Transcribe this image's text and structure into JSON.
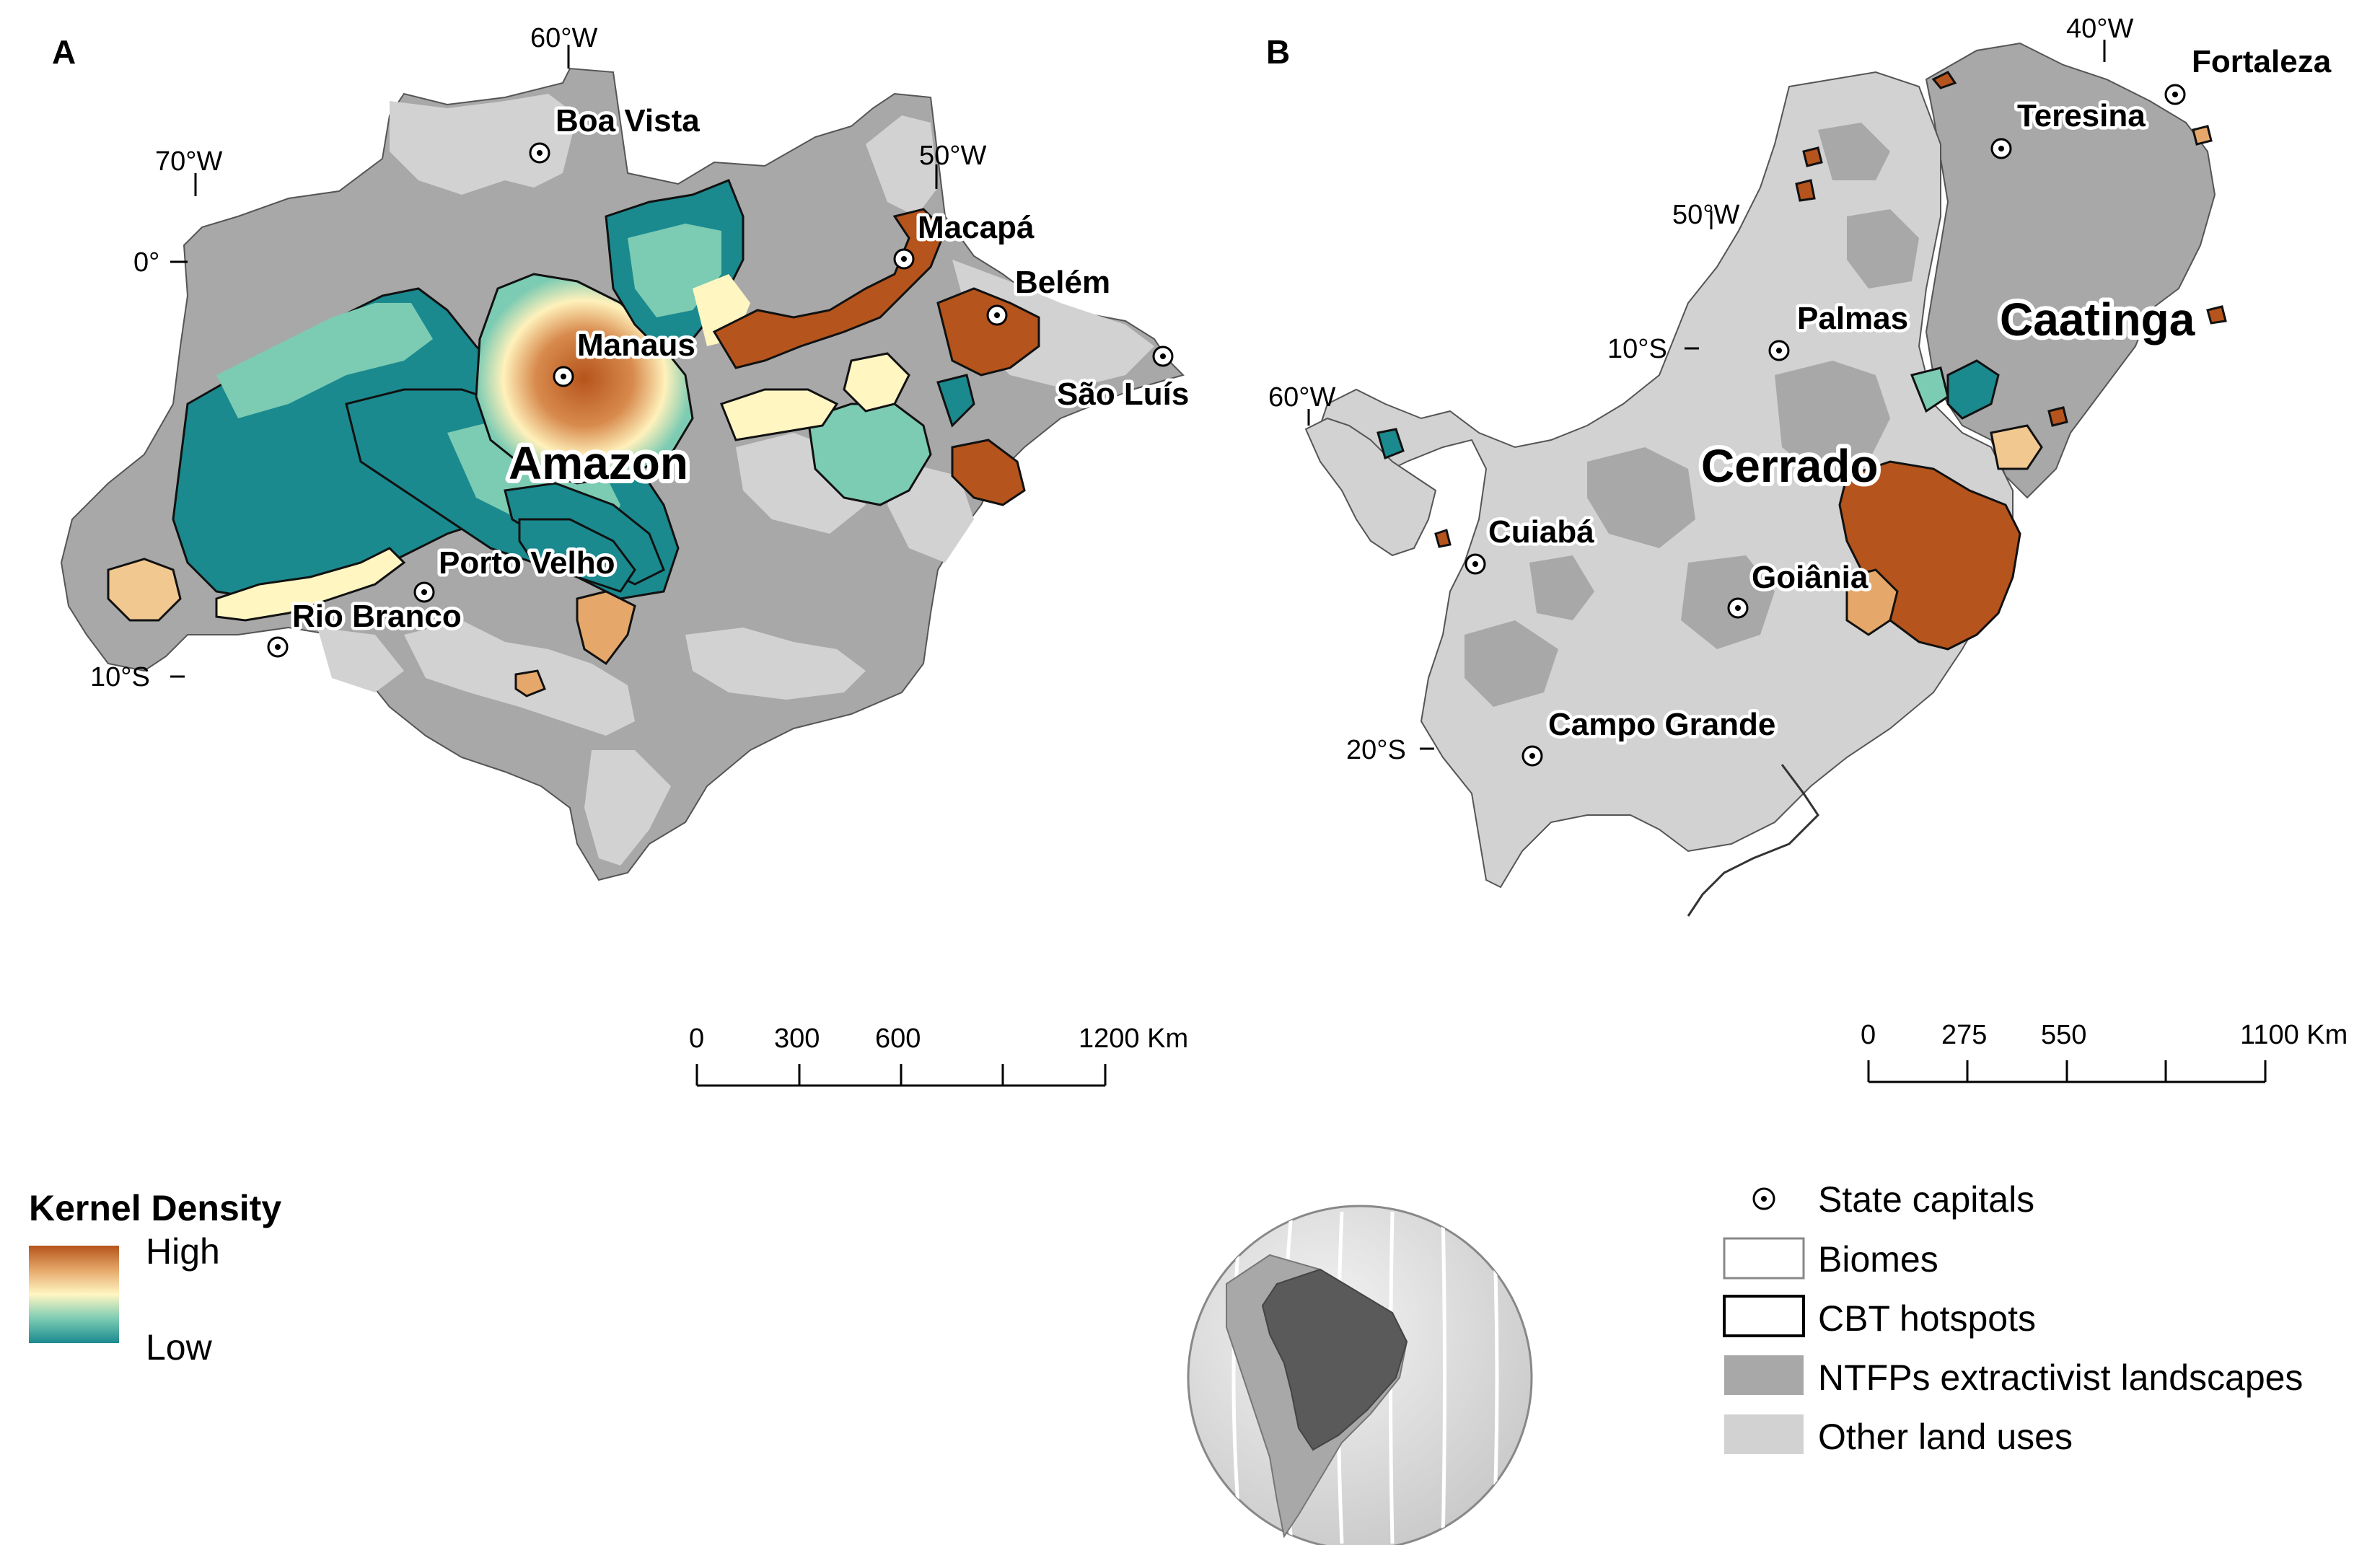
{
  "panels": {
    "a": {
      "letter": "A",
      "coords": {
        "lon_60w": "60°W",
        "lon_70w": "70°W",
        "lon_50w": "50°W",
        "lat_0": "0°",
        "lat_10s": "10°S"
      },
      "cities": {
        "boa_vista": "Boa Vista",
        "macapa": "Macapá",
        "belem": "Belém",
        "manaus": "Manaus",
        "sao_luis": "São Luís",
        "porto_velho": "Porto Velho",
        "rio_branco": "Rio Branco"
      },
      "biome": "Amazon",
      "scale": {
        "t0": "0",
        "t1": "300",
        "t2": "600",
        "t3": "1200 Km"
      }
    },
    "b": {
      "letter": "B",
      "coords": {
        "lon_40w": "40°W",
        "lon_50w": "50°W",
        "lon_60w": "60°W",
        "lat_10s": "10°S",
        "lat_20s": "20°S"
      },
      "cities": {
        "fortaleza": "Fortaleza",
        "teresina": "Teresina",
        "palmas": "Palmas",
        "cuiaba": "Cuiabá",
        "goiania": "Goiânia",
        "campo_grande": "Campo Grande"
      },
      "biomes": {
        "caatinga": "Caatinga",
        "cerrado": "Cerrado"
      },
      "scale": {
        "t0": "0",
        "t1": "275",
        "t2": "550",
        "t3": "1100 Km"
      }
    }
  },
  "kernel_legend": {
    "title": "Kernel Density",
    "high": "High",
    "low": "Low",
    "colors": {
      "high": "#b5541c",
      "mid": "#fff6c2",
      "low": "#1a8a8f"
    }
  },
  "legend": {
    "state_capitals": "State capitals",
    "biomes": "Biomes",
    "cbt_hotspots": "CBT hotspots",
    "ntfps": "NTFPs extractivist landscapes",
    "other": "Other land uses",
    "colors": {
      "ntfps": "#a8a8a8",
      "other": "#d2d2d2"
    }
  }
}
